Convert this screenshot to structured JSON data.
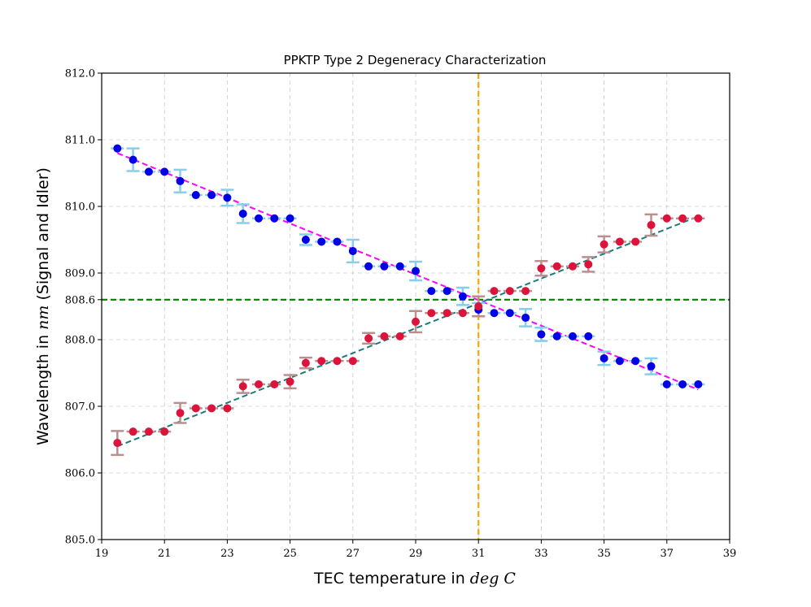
{
  "chart_data": {
    "type": "scatter",
    "title": "PPKTP Type 2 Degeneracy Characterization",
    "xlabel": {
      "text": "TEC temperature in ",
      "math": "deg C"
    },
    "ylabel": {
      "text": "Wavelength in ",
      "math": "nm",
      "suffix": " (Signal and Idler)"
    },
    "xlim": [
      19,
      39
    ],
    "ylim": [
      805.0,
      812.0
    ],
    "xticks": [
      19,
      21,
      23,
      25,
      27,
      29,
      31,
      33,
      35,
      37,
      39
    ],
    "yticks": [
      805.0,
      806.0,
      807.0,
      808.0,
      808.6,
      809.0,
      810.0,
      811.0,
      812.0
    ],
    "ytick_labels": [
      "805.0",
      "806.0",
      "807.0",
      "808.0",
      "808.6",
      "809.0",
      "810.0",
      "811.0",
      "812.0"
    ],
    "grid": true,
    "series": [
      {
        "color": "#0000e6",
        "errcolor": "#87ceeb",
        "x": [
          19.5,
          20,
          20.5,
          21,
          21.5,
          22,
          22.5,
          23,
          23.5,
          24,
          24.5,
          25,
          25.5,
          26,
          26.5,
          27,
          27.5,
          28,
          28.5,
          29,
          29.5,
          30,
          30.5,
          31,
          31.5,
          32,
          32.5,
          33,
          33.5,
          34,
          34.5,
          35,
          35.5,
          36,
          36.5,
          37,
          37.5,
          38
        ],
        "y": [
          810.87,
          810.7,
          810.52,
          810.52,
          810.38,
          810.17,
          810.17,
          810.13,
          809.89,
          809.82,
          809.82,
          809.82,
          809.5,
          809.47,
          809.47,
          809.33,
          809.1,
          809.1,
          809.1,
          809.03,
          808.73,
          808.73,
          808.65,
          808.45,
          808.4,
          808.4,
          808.33,
          808.08,
          808.05,
          808.05,
          808.05,
          807.72,
          807.68,
          807.68,
          807.6,
          807.33,
          807.33,
          807.33
        ],
        "err": [
          0,
          0.17,
          0,
          0,
          0.17,
          0,
          0,
          0.12,
          0.14,
          0,
          0,
          0,
          0.08,
          0,
          0,
          0.17,
          0,
          0,
          0,
          0.14,
          0,
          0,
          0.13,
          0.1,
          0,
          0,
          0.13,
          0.1,
          0,
          0,
          0,
          0.1,
          0,
          0,
          0.12,
          0,
          0,
          0
        ]
      },
      {
        "color": "#dc143c",
        "errcolor": "#bc8f8f",
        "x": [
          19.5,
          20,
          20.5,
          21,
          21.5,
          22,
          22.5,
          23,
          23.5,
          24,
          24.5,
          25,
          25.5,
          26,
          26.5,
          27,
          27.5,
          28,
          28.5,
          29,
          29.5,
          30,
          30.5,
          31,
          31.5,
          32,
          32.5,
          33,
          33.5,
          34,
          34.5,
          35,
          35.5,
          36,
          36.5,
          37,
          37.5,
          38
        ],
        "y": [
          806.45,
          806.62,
          806.62,
          806.62,
          806.9,
          806.97,
          806.97,
          806.97,
          807.3,
          807.33,
          807.33,
          807.37,
          807.65,
          807.68,
          807.68,
          807.68,
          808.02,
          808.05,
          808.05,
          808.27,
          808.4,
          808.4,
          808.4,
          808.5,
          808.73,
          808.73,
          808.73,
          809.07,
          809.1,
          809.1,
          809.13,
          809.43,
          809.47,
          809.47,
          809.72,
          809.82,
          809.82,
          809.82
        ],
        "err": [
          0.18,
          0,
          0,
          0,
          0.15,
          0,
          0,
          0,
          0.1,
          0,
          0,
          0.1,
          0.08,
          0,
          0,
          0,
          0.08,
          0,
          0,
          0.16,
          0,
          0,
          0,
          0.15,
          0,
          0,
          0,
          0.11,
          0,
          0,
          0.11,
          0.12,
          0,
          0,
          0.16,
          0,
          0,
          0
        ]
      }
    ],
    "fit_lines": [
      {
        "color": "#ff00ff",
        "x": [
          19.5,
          38
        ],
        "y": [
          810.8,
          807.25
        ]
      },
      {
        "color": "#1a7a7a",
        "x": [
          19.5,
          38
        ],
        "y": [
          806.4,
          809.85
        ]
      }
    ],
    "hline": {
      "y": 808.6,
      "color": "#008000"
    },
    "vline": {
      "x": 31,
      "color": "#ffa500"
    }
  }
}
